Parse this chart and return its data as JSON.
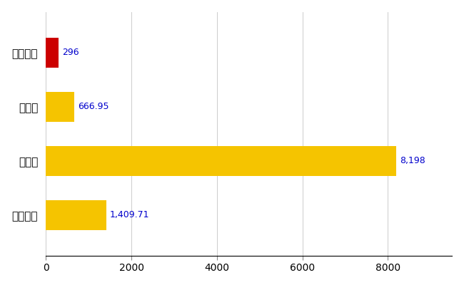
{
  "categories": [
    "佐久穂町",
    "県平均",
    "県最大",
    "全国平均"
  ],
  "values": [
    296,
    666.95,
    8198,
    1409.71
  ],
  "bar_colors": [
    "#cc0000",
    "#f5c400",
    "#f5c400",
    "#f5c400"
  ],
  "label_texts": [
    "296",
    "666.95",
    "8,198",
    "1,409.71"
  ],
  "background_color": "#ffffff",
  "grid_color": "#cccccc",
  "xlim": [
    0,
    9500
  ],
  "xticks": [
    0,
    2000,
    4000,
    6000,
    8000
  ],
  "xtick_labels": [
    "0",
    "2000",
    "4000",
    "6000",
    "8000"
  ],
  "bar_height": 0.55,
  "label_color": "#0000cc",
  "label_fontsize": 9,
  "ytick_fontsize": 11,
  "xtick_fontsize": 10
}
